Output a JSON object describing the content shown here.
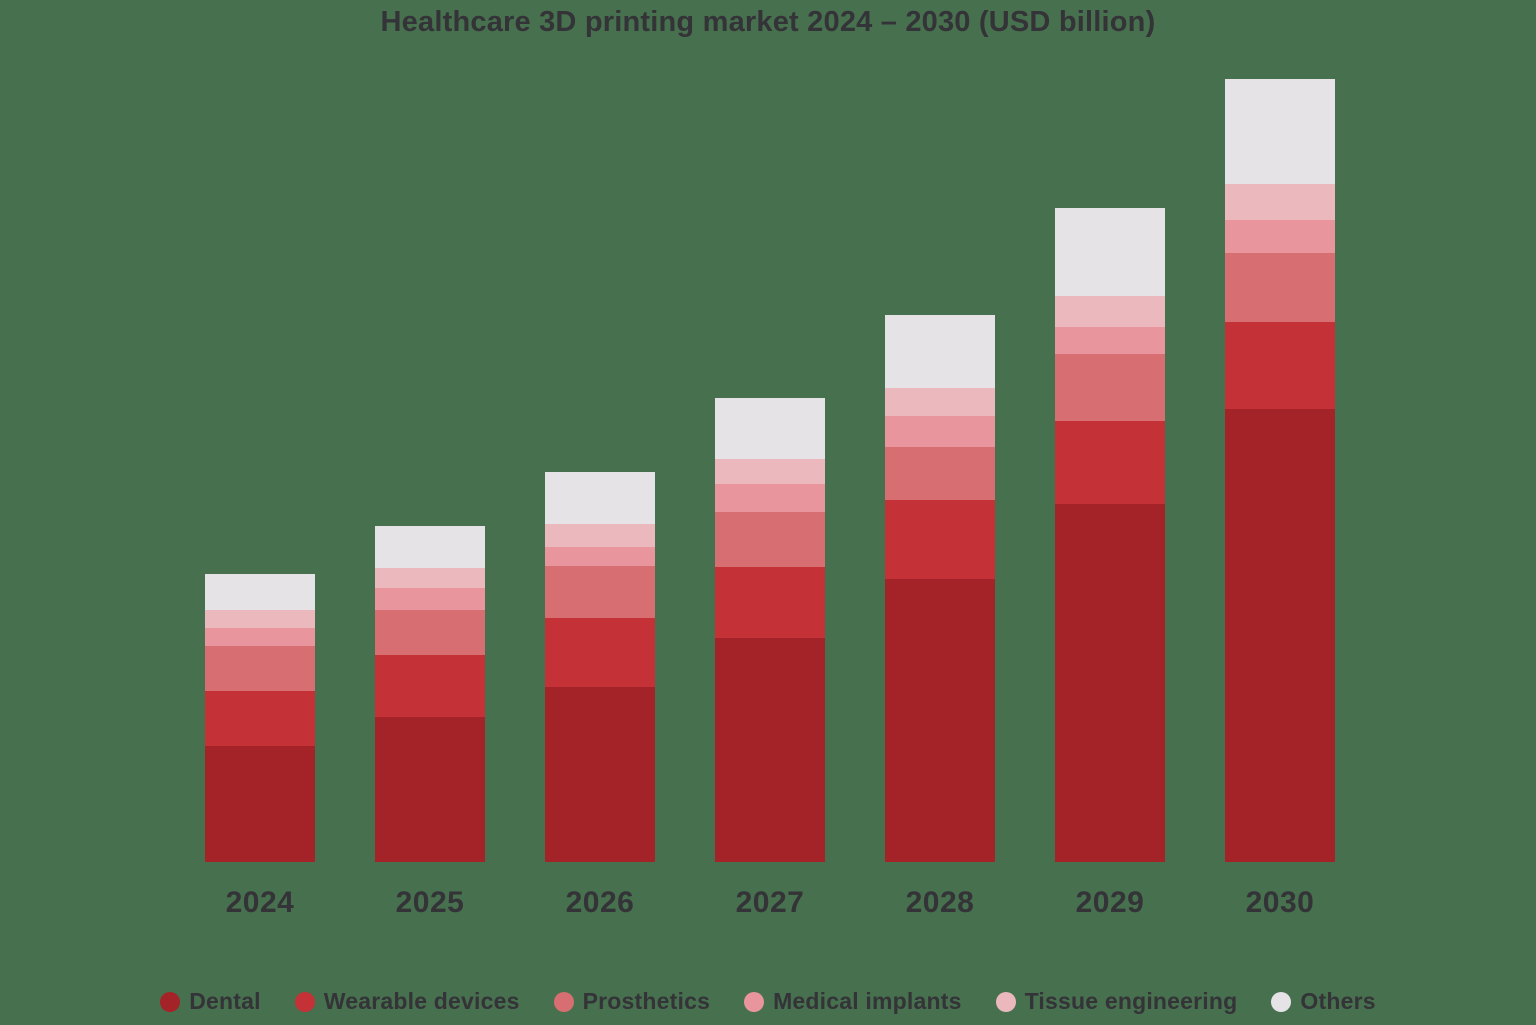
{
  "title": "Healthcare 3D printing market 2024 – 2030 (USD billion)",
  "colors": {
    "background": "#47704E",
    "text": "#343338"
  },
  "chart_data": {
    "type": "bar",
    "stacked": true,
    "title": "Healthcare 3D printing market 2024 – 2030 (USD billion)",
    "unit": "USD billion",
    "xlabel": "",
    "ylabel": "",
    "grid": false,
    "axes_hidden": true,
    "legend_position": "bottom",
    "ylim": [
      0,
      9.8
    ],
    "categories": [
      "2024",
      "2025",
      "2026",
      "2027",
      "2028",
      "2029",
      "2030"
    ],
    "series": [
      {
        "name": "Dental",
        "color": "#A42328",
        "values": [
          1.45,
          1.81,
          2.19,
          2.8,
          3.54,
          4.48,
          5.66
        ]
      },
      {
        "name": "Wearable devices",
        "color": "#C43136",
        "values": [
          0.69,
          0.78,
          0.86,
          0.89,
          0.99,
          1.03,
          1.09
        ]
      },
      {
        "name": "Prosthetics",
        "color": "#D66E72",
        "values": [
          0.56,
          0.56,
          0.65,
          0.69,
          0.66,
          0.84,
          0.86
        ]
      },
      {
        "name": "Medical implants",
        "color": "#E9959D",
        "values": [
          0.23,
          0.28,
          0.24,
          0.35,
          0.39,
          0.34,
          0.41
        ]
      },
      {
        "name": "Tissue engineering",
        "color": "#EBB9BD",
        "values": [
          0.22,
          0.24,
          0.28,
          0.31,
          0.35,
          0.39,
          0.46
        ]
      },
      {
        "name": "Others",
        "color": "#E6E3E6",
        "values": [
          0.45,
          0.53,
          0.66,
          0.76,
          0.91,
          1.09,
          1.31
        ]
      }
    ],
    "totals": [
      3.6,
      4.2,
      4.88,
      5.8,
      6.84,
      8.17,
      9.79
    ]
  },
  "legend": {
    "items": [
      "Dental",
      "Wearable devices",
      "Prosthetics",
      "Medical implants",
      "Tissue engineering",
      "Others"
    ]
  }
}
